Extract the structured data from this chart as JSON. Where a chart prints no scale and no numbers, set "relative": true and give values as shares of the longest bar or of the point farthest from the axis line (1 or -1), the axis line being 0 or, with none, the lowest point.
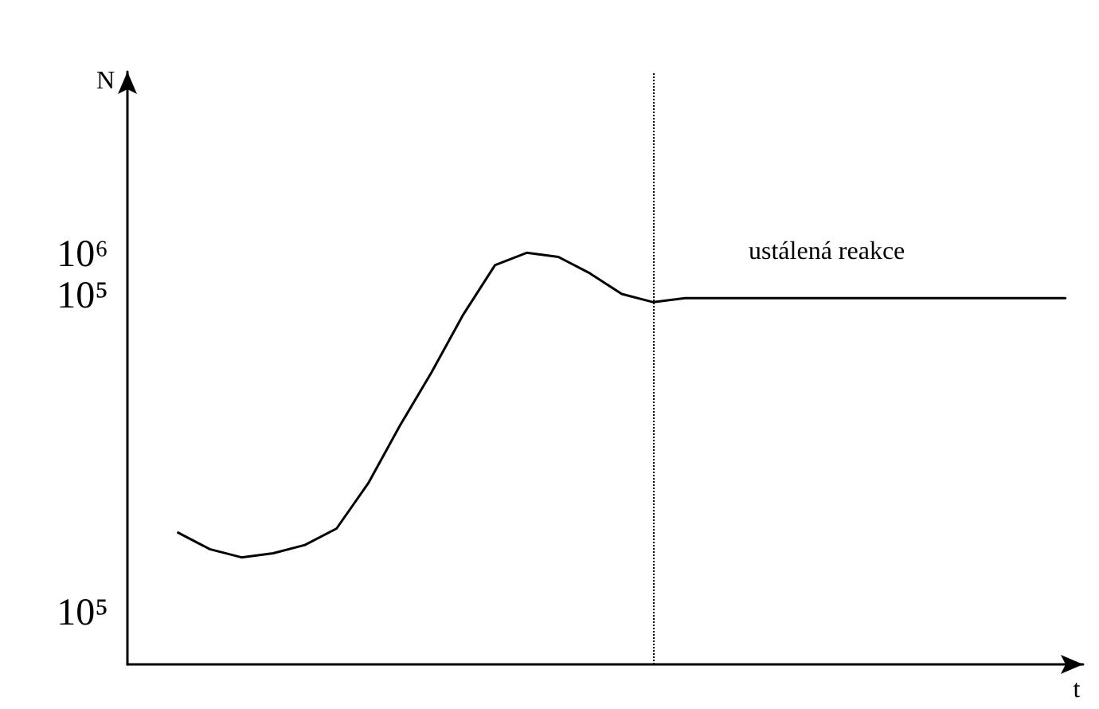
{
  "chart_data": {
    "type": "line",
    "xlabel": "t",
    "relative": true,
    "categories": [
      null,
      null,
      null,
      null,
      null,
      null,
      null,
      null,
      null,
      null,
      null,
      null,
      null,
      null,
      null,
      null,
      null,
      null,
      null,
      null,
      null,
      null,
      null,
      null,
      null,
      null,
      null,
      null,
      null
    ],
    "values": [
      0.32,
      0.28,
      0.26,
      0.27,
      0.29,
      0.33,
      0.44,
      0.58,
      0.71,
      0.85,
      0.97,
      1.0,
      0.99,
      0.95,
      0.9,
      0.88,
      0.89,
      0.89,
      0.89,
      0.89,
      0.89,
      0.89,
      0.89,
      0.89,
      0.89,
      0.89,
      0.89,
      0.89,
      0.89
    ],
    "color": "#000000",
    "annotations": [
      "10⁵",
      "10⁵",
      "10⁶",
      "ustálená reakce",
      "N"
    ],
    "grid": false,
    "marker": "none",
    "line_style": "solid"
  }
}
